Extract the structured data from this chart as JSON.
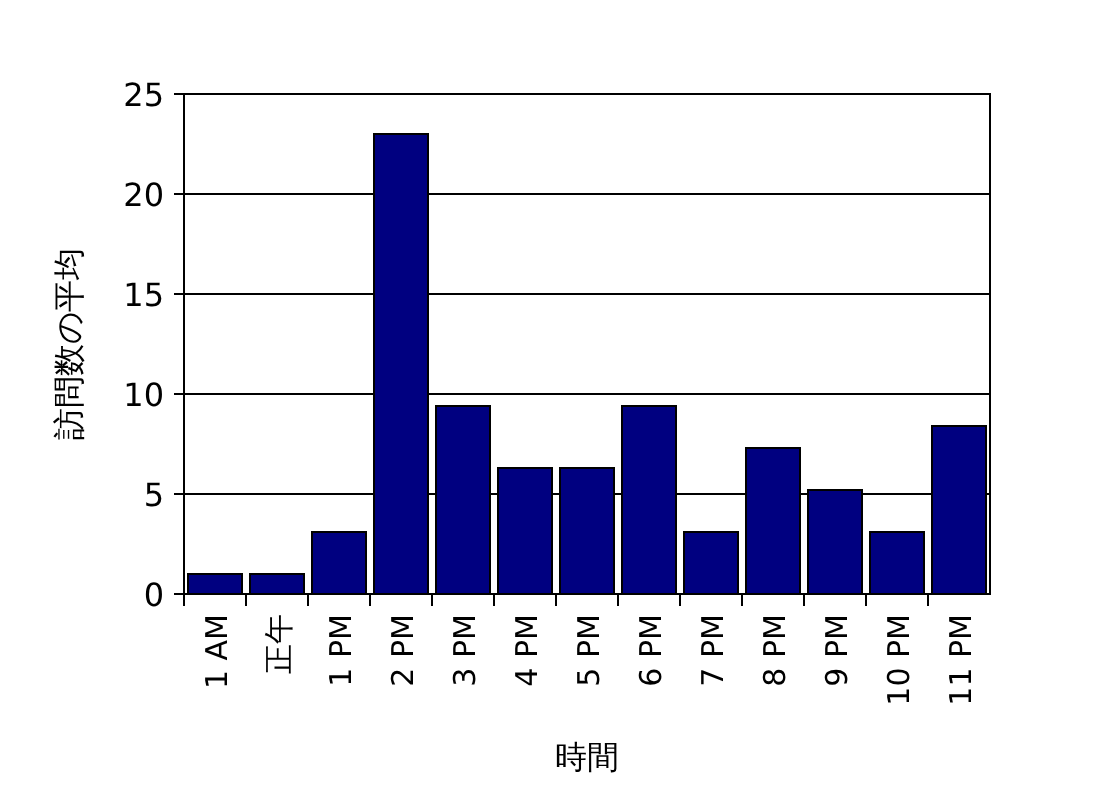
{
  "chart_data": {
    "type": "bar",
    "xlabel": "時間",
    "ylabel": "訪問数の平均",
    "categories": [
      "1 AM",
      "正午",
      "1 PM",
      "2 PM",
      "3 PM",
      "4 PM",
      "5 PM",
      "6 PM",
      "7 PM",
      "8 PM",
      "9 PM",
      "10 PM",
      "11 PM"
    ],
    "values": [
      1,
      1,
      3.1,
      23,
      9.4,
      6.3,
      6.3,
      9.4,
      3.1,
      7.3,
      5.2,
      3.1,
      8.4
    ],
    "color": "#000080",
    "ylim": [
      0,
      25
    ],
    "yticks": [
      0,
      5,
      10,
      15,
      20,
      25
    ],
    "grid": "y"
  }
}
